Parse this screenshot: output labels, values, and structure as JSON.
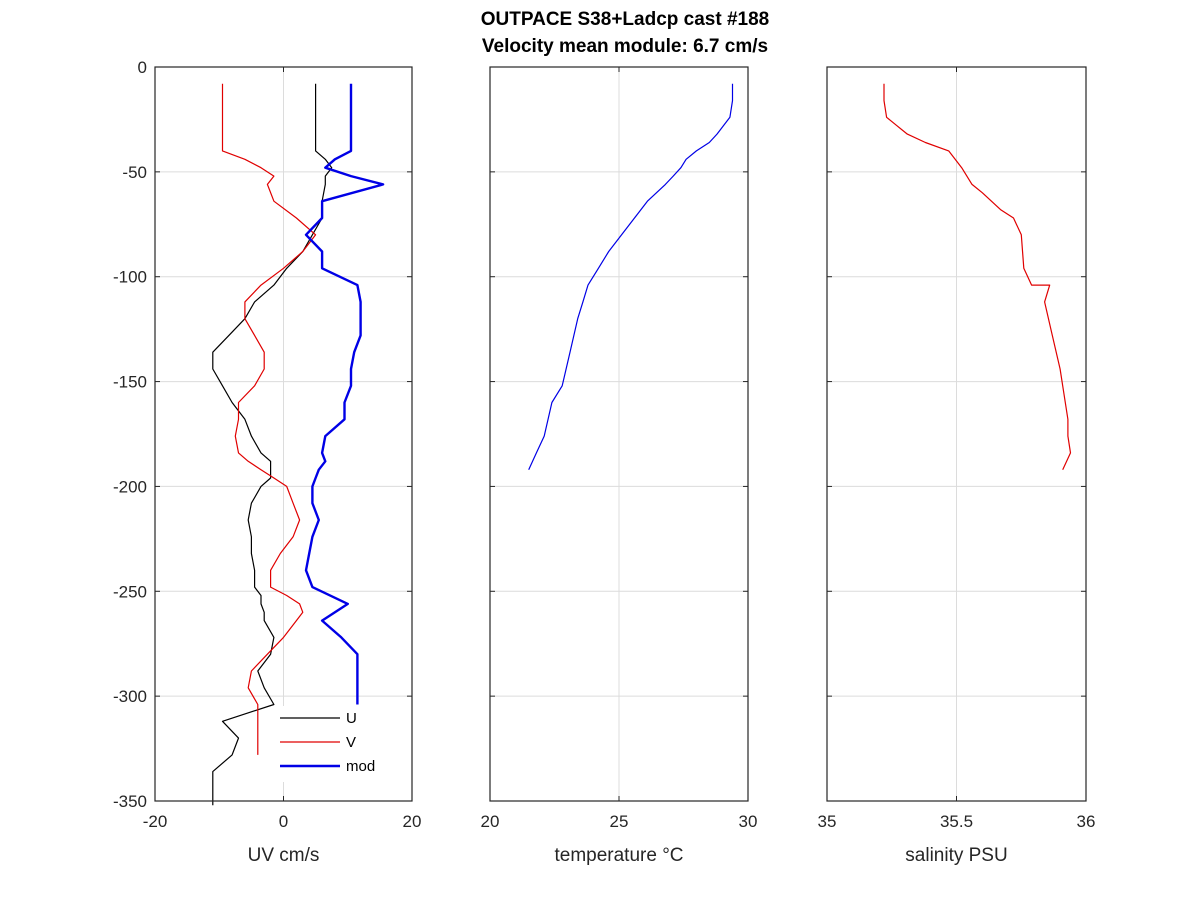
{
  "figure": {
    "title_line1": "OUTPACE S38+Ladcp cast #188",
    "title_line2": "Velocity mean module:  6.7 cm/s"
  },
  "chart_data": [
    {
      "type": "line",
      "xlabel": "UV cm/s",
      "ylabel": "",
      "xlim": [
        -20,
        20
      ],
      "ylim": [
        -350,
        0
      ],
      "xticks": [
        -20,
        0,
        20
      ],
      "yticks": [
        0,
        -50,
        -100,
        -150,
        -200,
        -250,
        -300,
        -350
      ],
      "xtick_labels": [
        "-20",
        "0",
        "20"
      ],
      "ytick_labels": [
        "0",
        "-50",
        "-100",
        "-150",
        "-200",
        "-250",
        "-300",
        "-350"
      ],
      "grid": true,
      "legend": "bottom-right",
      "series": [
        {
          "name": "U",
          "color": "#000000",
          "width": 1.2,
          "x": [
            5.0,
            5.0,
            5.0,
            5.0,
            5.0,
            6.5,
            7.5,
            6.5,
            6.5,
            6.0,
            6.0,
            4.5,
            3.0,
            0.5,
            -1.5,
            -4.5,
            -6.0,
            -8.5,
            -11.0,
            -11.0,
            -9.5,
            -8.0,
            -6.0,
            -5.0,
            -3.5,
            -2.0,
            -2.0,
            -2.0,
            -3.5,
            -5.0,
            -5.5,
            -5.0,
            -5.0,
            -4.5,
            -4.5,
            -3.5,
            -3.5,
            -3.0,
            -3.0,
            -1.5,
            -2.0,
            -4.0,
            -3.0,
            -1.5,
            -9.5,
            -7.0,
            -8.0,
            -11.0,
            -11.0,
            -11.0
          ],
          "y": [
            -8,
            -16,
            -24,
            -32,
            -40,
            -44,
            -48,
            -52,
            -56,
            -64,
            -72,
            -80,
            -88,
            -96,
            -104,
            -112,
            -120,
            -128,
            -136,
            -144,
            -152,
            -160,
            -168,
            -176,
            -184,
            -188,
            -192,
            -196,
            -200,
            -208,
            -216,
            -224,
            -232,
            -240,
            -248,
            -252,
            -256,
            -260,
            -264,
            -272,
            -280,
            -288,
            -296,
            -304,
            -312,
            -320,
            -328,
            -336,
            -344,
            -352
          ]
        },
        {
          "name": "V",
          "color": "#e00000",
          "width": 1.2,
          "x": [
            -9.5,
            -9.5,
            -9.5,
            -9.5,
            -9.5,
            -6.0,
            -3.5,
            -1.5,
            -2.5,
            -1.5,
            2.0,
            5.0,
            3.0,
            0.0,
            -3.5,
            -6.0,
            -6.0,
            -4.5,
            -3.0,
            -3.0,
            -4.5,
            -7.0,
            -7.0,
            -7.5,
            -7.0,
            -5.5,
            -3.5,
            -1.5,
            0.5,
            1.5,
            2.5,
            1.5,
            -0.5,
            -2.0,
            -2.0,
            0.5,
            2.5,
            3.0,
            2.0,
            0.0,
            -2.5,
            -5.0,
            -5.5,
            -4.0,
            -4.0,
            -4.0,
            -4.0
          ],
          "y": [
            -8,
            -16,
            -24,
            -32,
            -40,
            -44,
            -48,
            -52,
            -56,
            -64,
            -72,
            -80,
            -88,
            -96,
            -104,
            -112,
            -120,
            -128,
            -136,
            -144,
            -152,
            -160,
            -168,
            -176,
            -184,
            -188,
            -192,
            -196,
            -200,
            -208,
            -216,
            -224,
            -232,
            -240,
            -248,
            -252,
            -256,
            -260,
            -264,
            -272,
            -280,
            -288,
            -296,
            -304,
            -312,
            -320,
            -328
          ]
        },
        {
          "name": "mod",
          "color": "#0000e6",
          "width": 2.4,
          "x": [
            10.5,
            10.5,
            10.5,
            10.5,
            10.5,
            8.0,
            6.5,
            10.5,
            15.5,
            6.0,
            6.0,
            3.5,
            6.0,
            6.0,
            11.5,
            12.0,
            12.0,
            12.0,
            11.0,
            10.5,
            10.5,
            9.5,
            9.5,
            6.5,
            6.0,
            6.5,
            5.5,
            5.0,
            4.5,
            4.5,
            5.5,
            4.5,
            4.0,
            3.5,
            4.5,
            10.0,
            6.0,
            9.0,
            11.5,
            11.5,
            11.5
          ],
          "y": [
            -8,
            -16,
            -24,
            -32,
            -40,
            -44,
            -48,
            -52,
            -56,
            -64,
            -72,
            -80,
            -88,
            -96,
            -104,
            -112,
            -120,
            -128,
            -136,
            -144,
            -152,
            -160,
            -168,
            -176,
            -184,
            -188,
            -192,
            -196,
            -200,
            -208,
            -216,
            -224,
            -232,
            -240,
            -248,
            -256,
            -264,
            -272,
            -280,
            -288,
            -304
          ]
        }
      ]
    },
    {
      "type": "line",
      "xlabel": "temperature °C",
      "ylabel": "",
      "xlim": [
        20,
        30
      ],
      "ylim": [
        -350,
        0
      ],
      "xticks": [
        20,
        25,
        30
      ],
      "xtick_labels": [
        "20",
        "25",
        "30"
      ],
      "grid": true,
      "series": [
        {
          "color": "#0000e6",
          "width": 1.2,
          "x": [
            29.4,
            29.4,
            29.3,
            28.8,
            28.5,
            28.0,
            27.6,
            27.4,
            27.1,
            26.8,
            26.1,
            25.6,
            25.1,
            24.6,
            24.2,
            23.8,
            23.6,
            23.4,
            23.1,
            22.8,
            22.4,
            22.1,
            21.8,
            21.5
          ],
          "y": [
            -8,
            -16,
            -24,
            -32,
            -36,
            -40,
            -44,
            -48,
            -52,
            -56,
            -64,
            -72,
            -80,
            -88,
            -96,
            -104,
            -112,
            -120,
            -136,
            -152,
            -160,
            -176,
            -184,
            -192
          ]
        }
      ]
    },
    {
      "type": "line",
      "xlabel": "salinity PSU",
      "ylabel": "",
      "xlim": [
        35,
        36
      ],
      "ylim": [
        -350,
        0
      ],
      "xticks": [
        35,
        35.5,
        36
      ],
      "xtick_labels": [
        "35",
        "35.5",
        "36"
      ],
      "grid": true,
      "series": [
        {
          "color": "#e00000",
          "width": 1.2,
          "x": [
            35.22,
            35.22,
            35.23,
            35.27,
            35.31,
            35.38,
            35.47,
            35.52,
            35.56,
            35.6,
            35.67,
            35.72,
            35.75,
            35.76,
            35.79,
            35.86,
            35.84,
            35.87,
            35.9,
            35.91,
            35.93,
            35.93,
            35.94,
            35.91
          ],
          "y": [
            -8,
            -16,
            -24,
            -28,
            -32,
            -36,
            -40,
            -48,
            -56,
            -60,
            -68,
            -72,
            -80,
            -96,
            -104,
            -104,
            -112,
            -128,
            -144,
            -152,
            -168,
            -176,
            -184,
            -192
          ]
        }
      ]
    }
  ]
}
